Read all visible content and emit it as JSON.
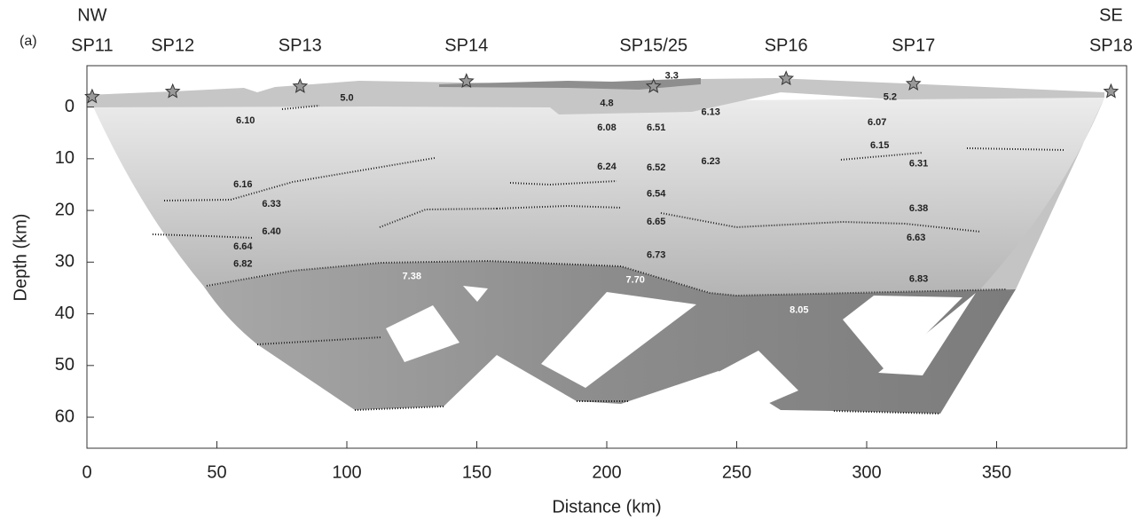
{
  "chart_data": {
    "type": "section",
    "panel_label": "(a)",
    "left_end": "NW",
    "right_end": "SE",
    "xlabel": "Distance (km)",
    "ylabel": "Depth (km)",
    "xlim": [
      0,
      400
    ],
    "ylim": [
      -8,
      66
    ],
    "y_inverted": true,
    "xticks": [
      0,
      50,
      100,
      150,
      200,
      250,
      300,
      350
    ],
    "yticks": [
      0,
      10,
      20,
      30,
      40,
      50,
      60
    ],
    "shot_points": {
      "names": [
        "SP11",
        "SP12",
        "SP13",
        "SP14",
        "SP15/25",
        "SP16",
        "SP17",
        "SP18"
      ],
      "x": [
        2,
        33,
        82,
        146,
        218,
        269,
        318,
        394
      ],
      "depth": [
        -2,
        -3,
        -4,
        -5,
        -4,
        -5.5,
        -4.5,
        -3
      ],
      "color": "#999999"
    },
    "velocities": {
      "x": [
        225,
        100,
        200,
        309,
        61,
        240,
        304,
        200,
        219,
        305,
        320,
        200,
        219,
        240,
        60,
        71,
        219,
        320,
        219,
        71,
        319,
        60,
        60,
        219,
        125,
        211,
        320,
        274
      ],
      "depth": [
        -6,
        -1.7,
        -0.7,
        -1.9,
        2.7,
        1,
        3,
        4,
        4,
        7.5,
        11,
        11.6,
        11.8,
        10.6,
        15,
        18.8,
        16.8,
        19.7,
        22.2,
        24.1,
        25.3,
        27,
        30.4,
        28.7,
        32.8,
        33.5,
        33.3,
        39.3
      ],
      "values": [
        3.3,
        5.0,
        4.8,
        5.2,
        6.1,
        6.13,
        6.07,
        6.08,
        6.51,
        6.15,
        6.31,
        6.24,
        6.52,
        6.23,
        6.16,
        6.33,
        6.54,
        6.38,
        6.65,
        6.4,
        6.63,
        6.64,
        6.82,
        6.73,
        7.38,
        7.7,
        6.83,
        8.05
      ],
      "value_labels": [
        "3.3",
        "5.0",
        "4.8",
        "5.2",
        "6.10",
        "6.13",
        "6.07",
        "6.08",
        "6.51",
        "6.15",
        "6.31",
        "6.24",
        "6.52",
        "6.23",
        "6.16",
        "6.33",
        "6.54",
        "6.38",
        "6.65",
        "6.40",
        "6.63",
        "6.64",
        "6.82",
        "6.73",
        "7.38",
        "7.70",
        "6.83",
        "8.05"
      ],
      "colors": [
        "#222222",
        "#222222",
        "#222222",
        "#222222",
        "#222222",
        "#222222",
        "#222222",
        "#222222",
        "#222222",
        "#222222",
        "#222222",
        "#222222",
        "#222222",
        "#222222",
        "#222222",
        "#222222",
        "#222222",
        "#222222",
        "#222222",
        "#222222",
        "#222222",
        "#222222",
        "#222222",
        "#222222",
        "#ffffff",
        "#ffffff",
        "#222222",
        "#ffffff"
      ]
    }
  }
}
